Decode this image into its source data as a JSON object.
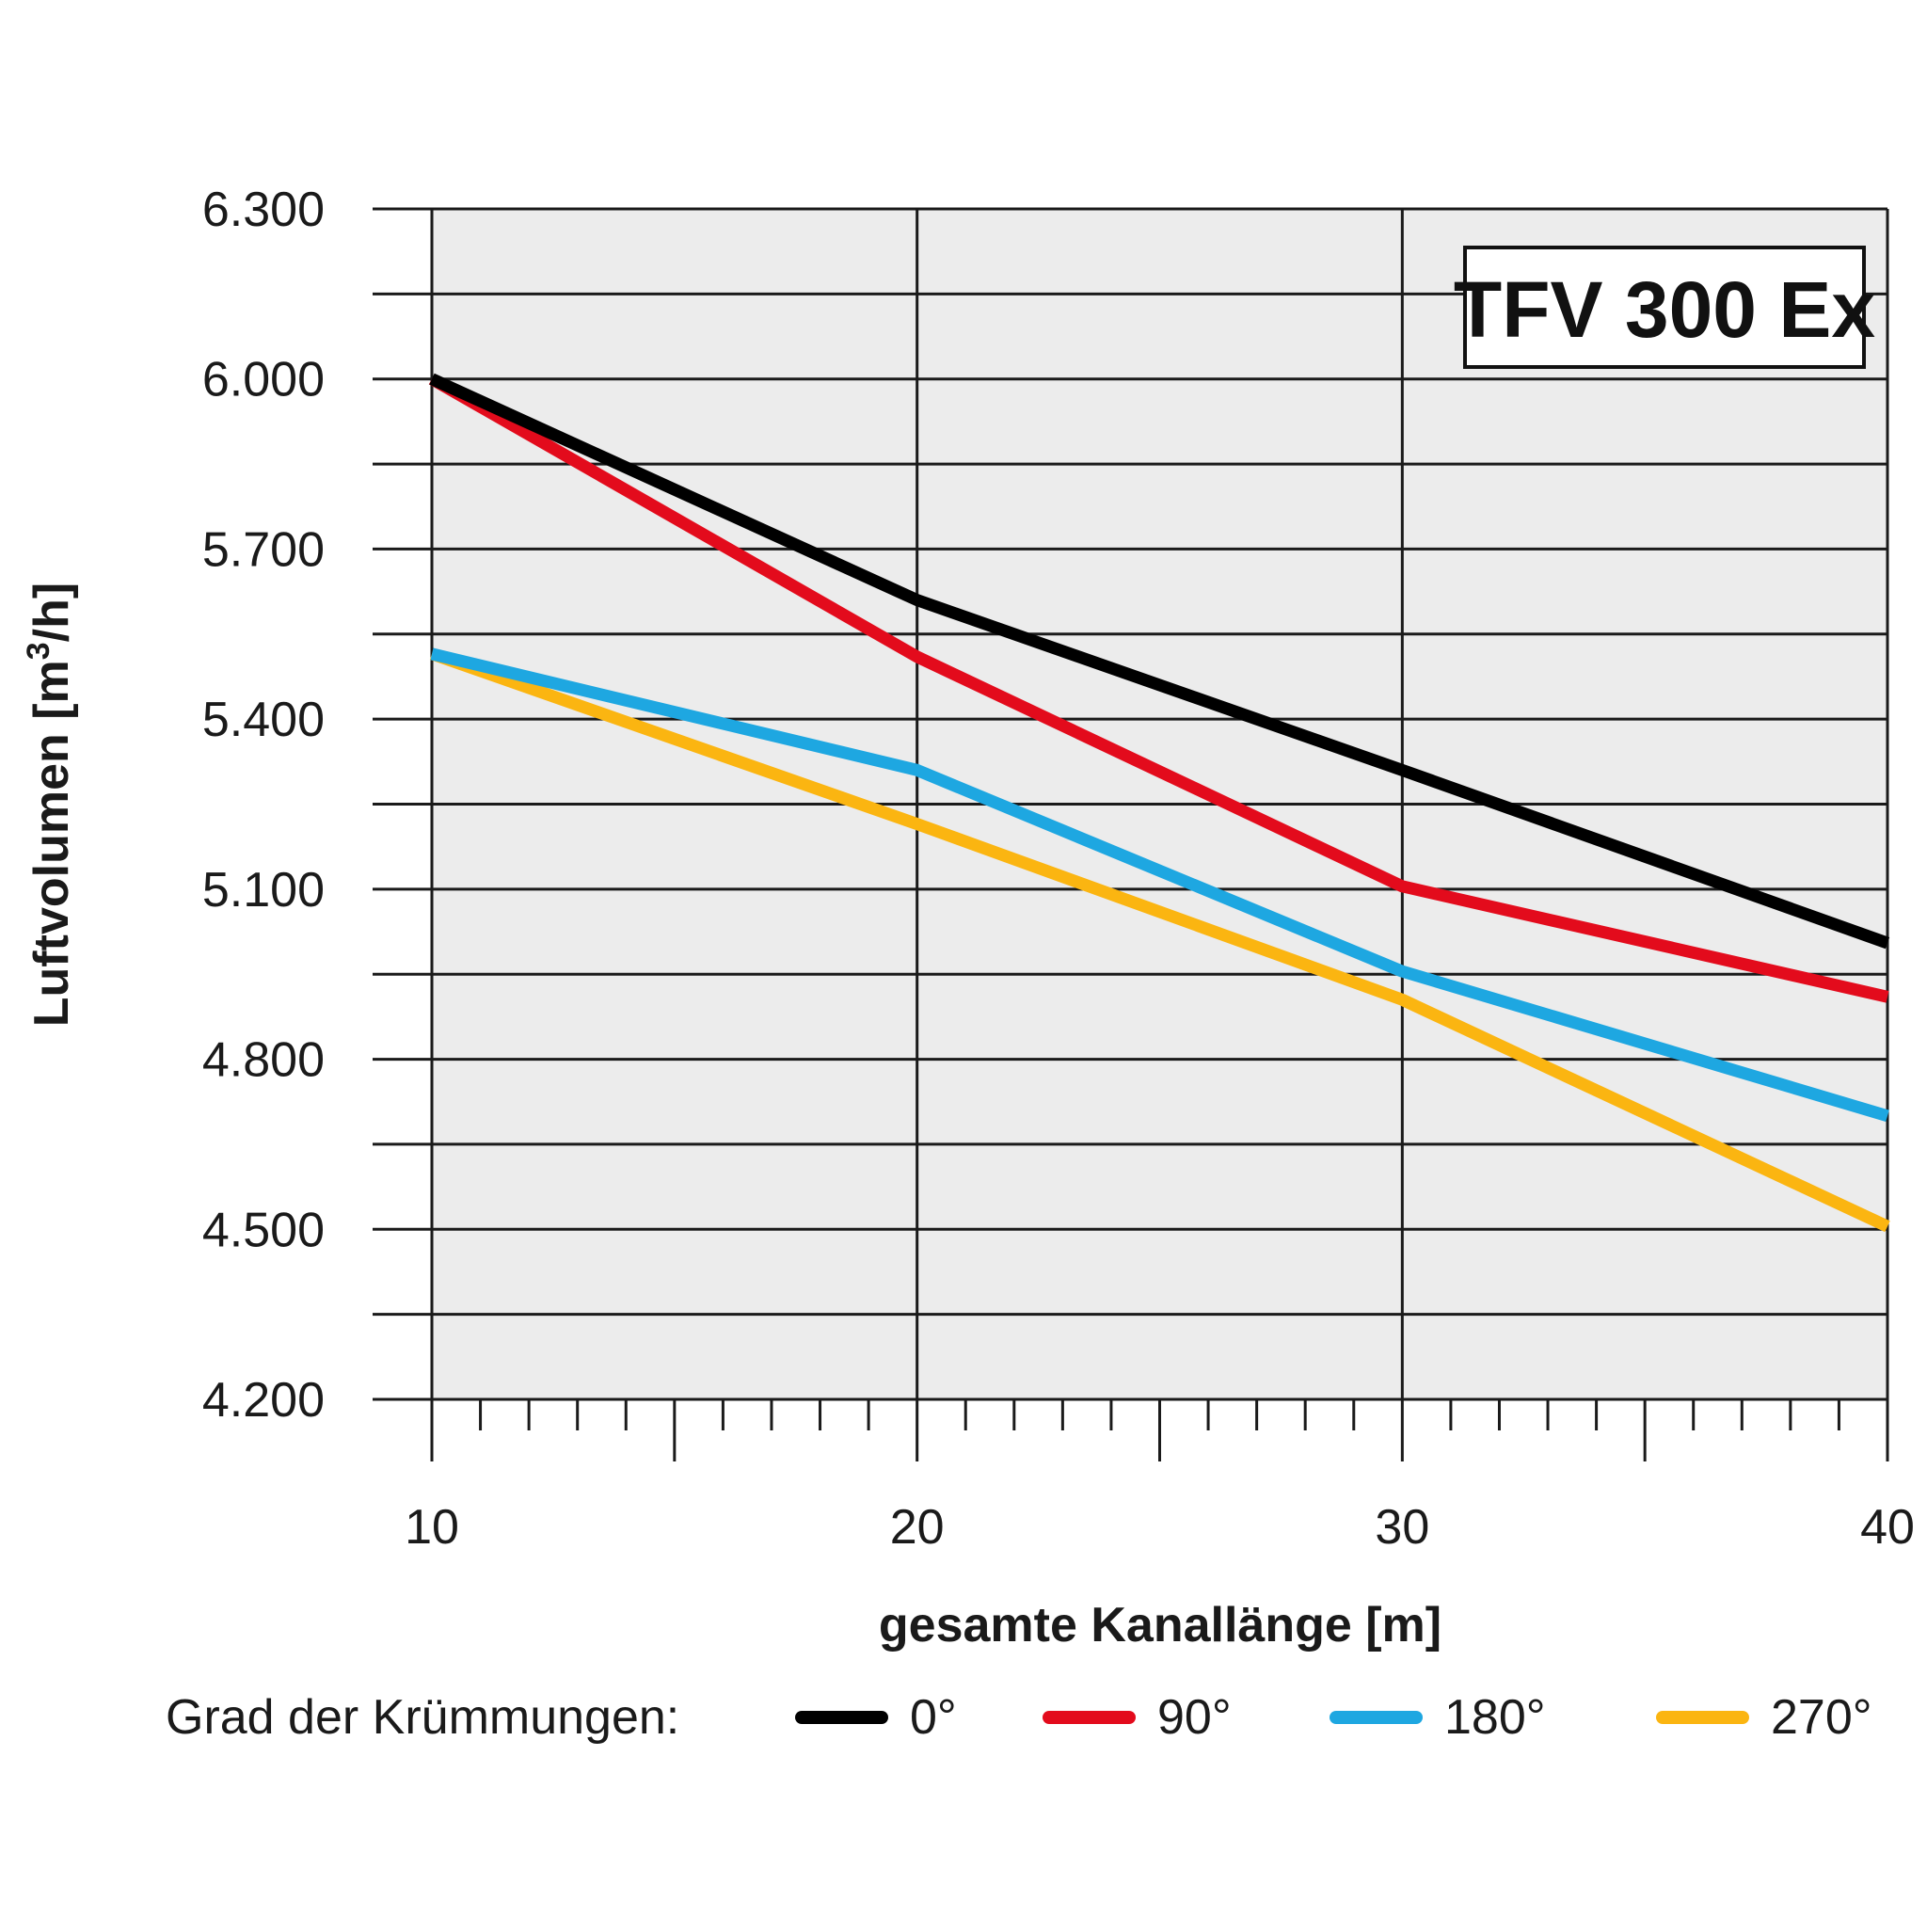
{
  "chart_data": {
    "type": "line",
    "annotation": "TFV 300 Ex",
    "xlabel": "gesamte Kanallänge [m]",
    "ylabel_main": "Luftvolumen [m",
    "ylabel_sup": "3",
    "ylabel_end": "/h]",
    "xlim": [
      10,
      40
    ],
    "ylim": [
      4200,
      6300
    ],
    "x_ticks": [
      10,
      20,
      30,
      40
    ],
    "x_tick_labels": [
      "10",
      "20",
      "30",
      "40"
    ],
    "y_ticks": [
      4200,
      4500,
      4800,
      5100,
      5400,
      5700,
      6000,
      6300
    ],
    "y_tick_labels": [
      "4.200",
      "4.500",
      "4.800",
      "5.100",
      "5.400",
      "5.700",
      "6.000",
      "6.300"
    ],
    "y_minor_step": 150,
    "x_minor_step": 1,
    "grid": true,
    "x": [
      10,
      20,
      30,
      40
    ],
    "legend_title": "Grad der Krümmungen:",
    "legend_position": "bottom",
    "series": [
      {
        "name": "0°",
        "color": "#000000",
        "values": [
          6000,
          5610,
          5310,
          5005
        ]
      },
      {
        "name": "90°",
        "color": "#e30b1c",
        "values": [
          6000,
          5510,
          5105,
          4910
        ]
      },
      {
        "name": "180°",
        "color": "#1ea7e1",
        "values": [
          5515,
          5310,
          4955,
          4700
        ]
      },
      {
        "name": "270°",
        "color": "#fbb511",
        "values": [
          5515,
          5215,
          4905,
          4505
        ]
      }
    ]
  }
}
